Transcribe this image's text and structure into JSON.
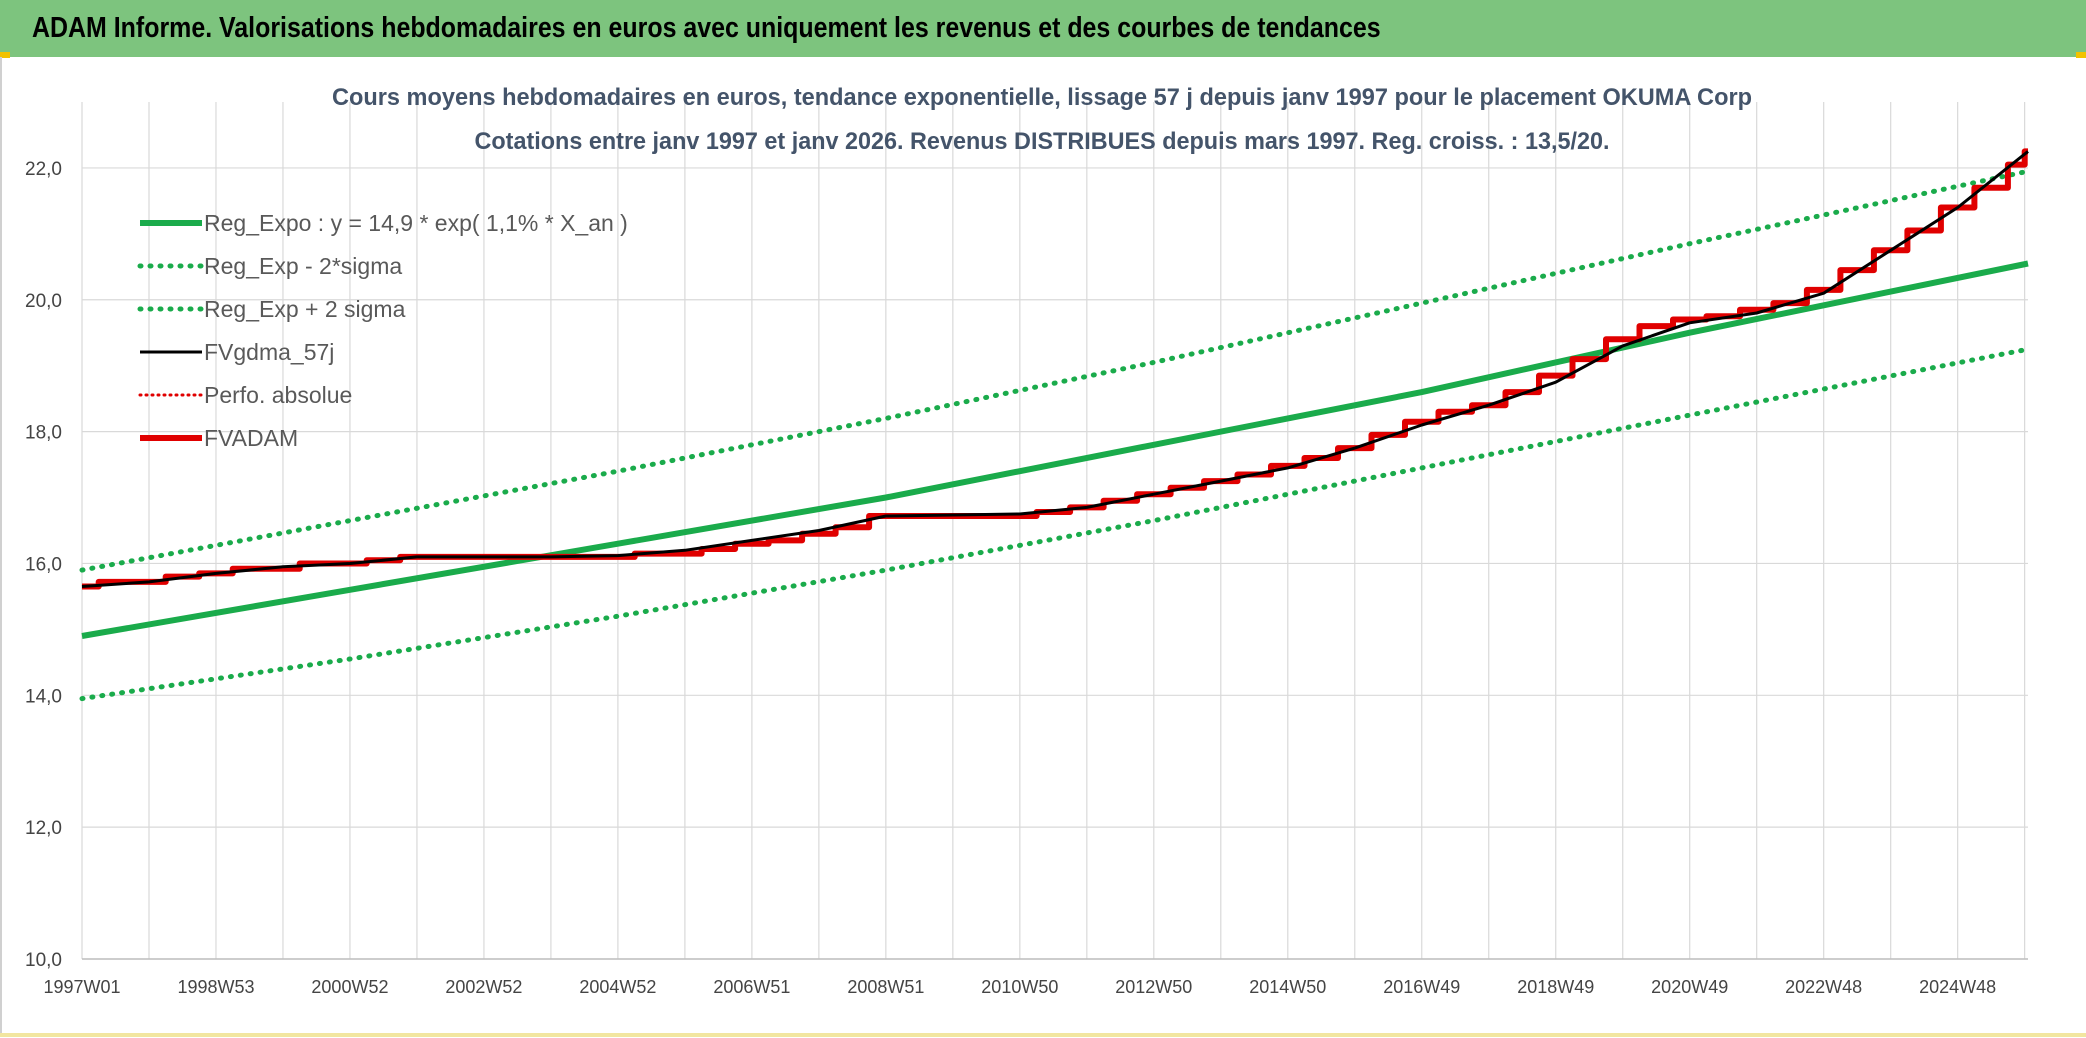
{
  "banner": {
    "title": "ADAM Informe. Valorisations hebdomadaires en euros avec uniquement les revenus et des courbes de tendances"
  },
  "colors": {
    "banner_bg": "#7dc47e",
    "reg_expo": "#1aab4b",
    "sigma_lines": "#1aab4b",
    "fvgdma": "#000000",
    "perfo_absolue": "#e00000",
    "fvadam": "#e00000",
    "grid": "#d9d9d9",
    "text": "#444444"
  },
  "chart_data": {
    "type": "line",
    "title": "Cours moyens hebdomadaires en euros, tendance exponentielle, lissage 57 j depuis janv 1997 pour le placement OKUMA Corp",
    "subtitle": "Cotations entre janv 1997 et janv 2026. Revenus DISTRIBUES depuis mars 1997. Reg. croiss. : 13,5/20.",
    "xlabel": "",
    "ylabel": "",
    "x_range_years": [
      1997.0,
      2026.05
    ],
    "ylim": [
      10,
      23
    ],
    "y_ticks": [
      "10,0",
      "12,0",
      "14,0",
      "16,0",
      "18,0",
      "20,0",
      "22,0"
    ],
    "y_tick_values": [
      10,
      12,
      14,
      16,
      18,
      20,
      22
    ],
    "x_ticks": [
      {
        "label": "1997W01",
        "year": 1997.0
      },
      {
        "label": "1998W53",
        "year": 1999.0
      },
      {
        "label": "2000W52",
        "year": 2001.0
      },
      {
        "label": "2002W52",
        "year": 2003.0
      },
      {
        "label": "2004W52",
        "year": 2005.0
      },
      {
        "label": "2006W51",
        "year": 2007.0
      },
      {
        "label": "2008W51",
        "year": 2009.0
      },
      {
        "label": "2010W50",
        "year": 2011.0
      },
      {
        "label": "2012W50",
        "year": 2013.0
      },
      {
        "label": "2014W50",
        "year": 2015.0
      },
      {
        "label": "2016W49",
        "year": 2017.0
      },
      {
        "label": "2018W49",
        "year": 2019.0
      },
      {
        "label": "2020W49",
        "year": 2021.0
      },
      {
        "label": "2022W48",
        "year": 2023.0
      },
      {
        "label": "2024W48",
        "year": 2025.0
      }
    ],
    "grid": true,
    "legend_placement": "top-left",
    "series": [
      {
        "name": "Reg_Expo : y = 14,9 * exp( 1,1% *  X_an )",
        "style": "solid-thick",
        "points": [
          [
            1997.0,
            14.9
          ],
          [
            2001.0,
            15.6
          ],
          [
            2005.0,
            16.3
          ],
          [
            2009.0,
            17.0
          ],
          [
            2013.0,
            17.8
          ],
          [
            2017.0,
            18.6
          ],
          [
            2021.0,
            19.5
          ],
          [
            2026.05,
            20.55
          ]
        ]
      },
      {
        "name": "Reg_Exp - 2*sigma",
        "style": "dotted",
        "points": [
          [
            1997.0,
            13.95
          ],
          [
            2001.0,
            14.55
          ],
          [
            2005.0,
            15.2
          ],
          [
            2009.0,
            15.9
          ],
          [
            2013.0,
            16.65
          ],
          [
            2017.0,
            17.45
          ],
          [
            2021.0,
            18.25
          ],
          [
            2026.05,
            19.25
          ]
        ]
      },
      {
        "name": "Reg_Exp + 2 sigma",
        "style": "dotted",
        "points": [
          [
            1997.0,
            15.9
          ],
          [
            2001.0,
            16.65
          ],
          [
            2005.0,
            17.4
          ],
          [
            2009.0,
            18.2
          ],
          [
            2013.0,
            19.05
          ],
          [
            2017.0,
            19.95
          ],
          [
            2021.0,
            20.85
          ],
          [
            2026.05,
            21.95
          ]
        ]
      },
      {
        "name": "FVgdma_57j",
        "style": "solid-thin",
        "points": [
          [
            1997.0,
            15.65
          ],
          [
            1998.0,
            15.72
          ],
          [
            1999.0,
            15.85
          ],
          [
            2000.0,
            15.95
          ],
          [
            2001.0,
            16.0
          ],
          [
            2002.0,
            16.1
          ],
          [
            2004.0,
            16.1
          ],
          [
            2005.0,
            16.12
          ],
          [
            2006.0,
            16.2
          ],
          [
            2007.0,
            16.35
          ],
          [
            2008.0,
            16.5
          ],
          [
            2009.0,
            16.72
          ],
          [
            2011.0,
            16.75
          ],
          [
            2012.0,
            16.85
          ],
          [
            2013.0,
            17.05
          ],
          [
            2014.0,
            17.25
          ],
          [
            2015.0,
            17.45
          ],
          [
            2016.0,
            17.75
          ],
          [
            2017.0,
            18.1
          ],
          [
            2018.0,
            18.4
          ],
          [
            2019.0,
            18.75
          ],
          [
            2020.0,
            19.3
          ],
          [
            2021.0,
            19.65
          ],
          [
            2022.0,
            19.8
          ],
          [
            2023.0,
            20.1
          ],
          [
            2024.0,
            20.75
          ],
          [
            2025.0,
            21.4
          ],
          [
            2026.05,
            22.25
          ]
        ]
      },
      {
        "name": "Perfo. absolue",
        "style": "dotted-thin",
        "points": []
      },
      {
        "name": "FVADAM",
        "style": "step-thick",
        "steps": [
          [
            1997.0,
            15.65
          ],
          [
            1997.25,
            15.72
          ],
          [
            1998.25,
            15.8
          ],
          [
            1998.75,
            15.85
          ],
          [
            1999.25,
            15.92
          ],
          [
            2000.25,
            16.0
          ],
          [
            2001.25,
            16.05
          ],
          [
            2001.75,
            16.1
          ],
          [
            2005.25,
            16.15
          ],
          [
            2006.25,
            16.22
          ],
          [
            2006.75,
            16.3
          ],
          [
            2007.25,
            16.35
          ],
          [
            2007.75,
            16.45
          ],
          [
            2008.25,
            16.55
          ],
          [
            2008.75,
            16.72
          ],
          [
            2011.25,
            16.78
          ],
          [
            2011.75,
            16.85
          ],
          [
            2012.25,
            16.95
          ],
          [
            2012.75,
            17.05
          ],
          [
            2013.25,
            17.15
          ],
          [
            2013.75,
            17.25
          ],
          [
            2014.25,
            17.35
          ],
          [
            2014.75,
            17.48
          ],
          [
            2015.25,
            17.6
          ],
          [
            2015.75,
            17.75
          ],
          [
            2016.25,
            17.95
          ],
          [
            2016.75,
            18.15
          ],
          [
            2017.25,
            18.3
          ],
          [
            2017.75,
            18.4
          ],
          [
            2018.25,
            18.6
          ],
          [
            2018.75,
            18.85
          ],
          [
            2019.25,
            19.1
          ],
          [
            2019.75,
            19.4
          ],
          [
            2020.25,
            19.6
          ],
          [
            2020.75,
            19.7
          ],
          [
            2021.25,
            19.75
          ],
          [
            2021.75,
            19.85
          ],
          [
            2022.25,
            19.95
          ],
          [
            2022.75,
            20.15
          ],
          [
            2023.25,
            20.45
          ],
          [
            2023.75,
            20.75
          ],
          [
            2024.25,
            21.05
          ],
          [
            2024.75,
            21.4
          ],
          [
            2025.25,
            21.7
          ],
          [
            2025.75,
            22.05
          ],
          [
            2026.0,
            22.25
          ]
        ],
        "end_year": 2026.05
      }
    ]
  }
}
